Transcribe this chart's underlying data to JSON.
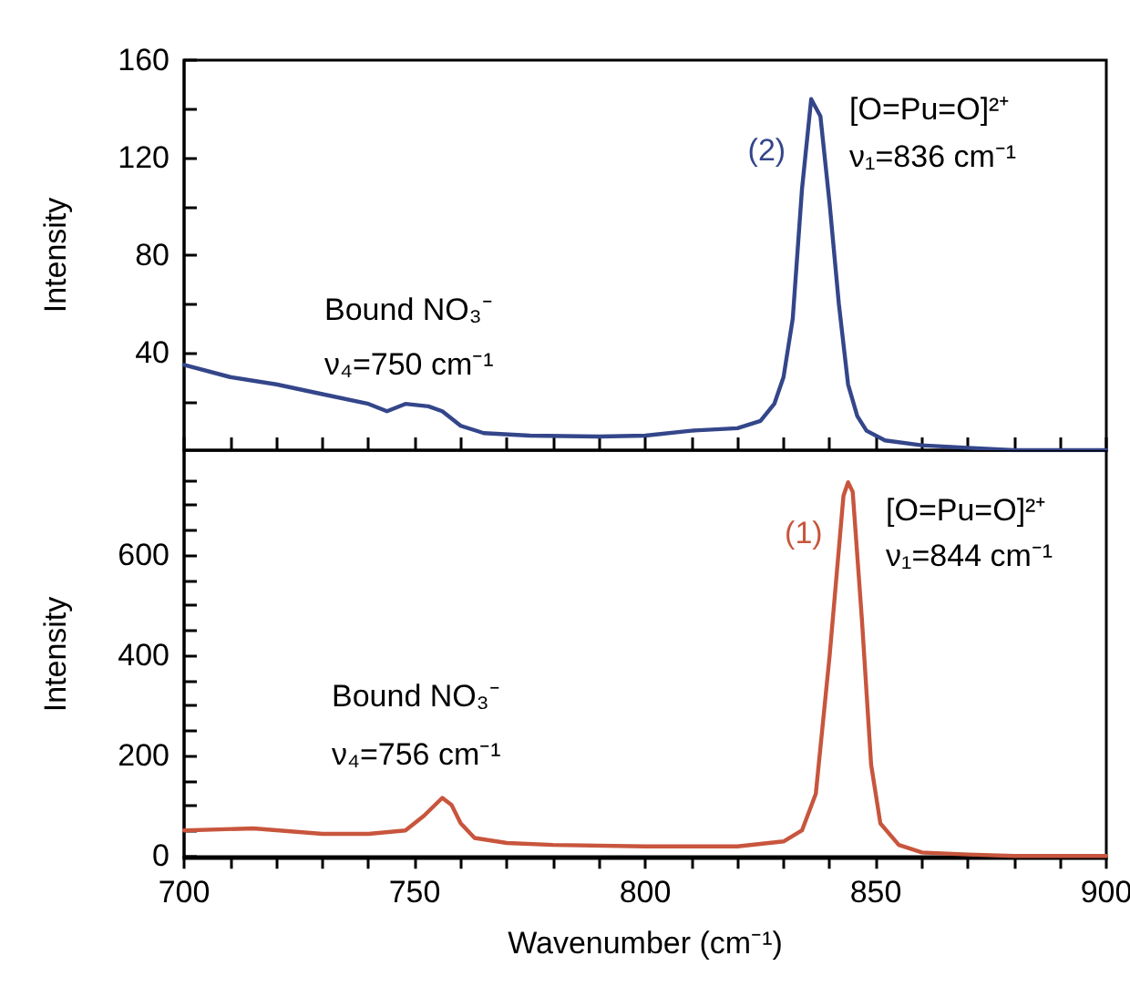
{
  "chart_data": [
    {
      "type": "line",
      "ylabel": "Intensity",
      "tick_labels": "y",
      "grid": false,
      "legend": false,
      "marker": "none",
      "line_style": "solid",
      "xlim": [
        700,
        900
      ],
      "xticks": [
        700,
        710,
        720,
        730,
        740,
        750,
        760,
        770,
        780,
        790,
        800,
        810,
        820,
        830,
        840,
        850,
        860,
        870,
        880,
        890,
        900
      ],
      "ylim": [
        0,
        160
      ],
      "yticks": [
        {
          "value": 20,
          "label": null
        },
        40,
        {
          "value": 60,
          "label": null
        },
        80,
        {
          "value": 100,
          "label": null
        },
        120,
        {
          "value": 140,
          "label": null
        },
        160
      ],
      "series": [
        {
          "name": "(2)",
          "color": "#34468a",
          "x": [
            700,
            710,
            720,
            730,
            740,
            744,
            748,
            753,
            756,
            760,
            765,
            775,
            790,
            800,
            810,
            820,
            825,
            828,
            830,
            832,
            834,
            836,
            838,
            840,
            842,
            844,
            846,
            848,
            852,
            860,
            870,
            880,
            890,
            900
          ],
          "values": [
            35,
            30,
            27,
            23,
            19,
            16,
            19,
            18,
            16,
            10,
            7,
            6,
            5.6,
            6,
            8,
            9,
            12,
            19,
            30,
            54,
            107,
            144,
            137,
            101,
            60,
            27,
            14,
            8,
            4,
            2,
            1,
            0,
            0,
            0
          ]
        }
      ],
      "annotations": [
        "Bound NO₃⁻",
        "ν₄=750 cm⁻¹",
        "[O=Pu=O]²⁺",
        "ν₁=836 cm⁻¹"
      ]
    },
    {
      "type": "line",
      "xlabel": "Wavenumber (cm⁻¹)",
      "ylabel": "Intensity",
      "grid": false,
      "legend": false,
      "marker": "none",
      "line_style": "solid",
      "xlim": [
        700,
        900
      ],
      "xticks": [
        700,
        {
          "value": 710,
          "label": null
        },
        {
          "value": 720,
          "label": null
        },
        {
          "value": 730,
          "label": null
        },
        {
          "value": 740,
          "label": null
        },
        750,
        {
          "value": 760,
          "label": null
        },
        {
          "value": 770,
          "label": null
        },
        {
          "value": 780,
          "label": null
        },
        {
          "value": 790,
          "label": null
        },
        800,
        {
          "value": 810,
          "label": null
        },
        {
          "value": 820,
          "label": null
        },
        {
          "value": 830,
          "label": null
        },
        {
          "value": 840,
          "label": null
        },
        850,
        {
          "value": 860,
          "label": null
        },
        {
          "value": 870,
          "label": null
        },
        {
          "value": 880,
          "label": null
        },
        {
          "value": 890,
          "label": null
        },
        900
      ],
      "ylim": [
        -5,
        810
      ],
      "yticks": [
        0,
        {
          "value": 50,
          "label": null
        },
        {
          "value": 100,
          "label": null
        },
        {
          "value": 150,
          "label": null
        },
        200,
        {
          "value": 250,
          "label": null
        },
        {
          "value": 300,
          "label": null
        },
        {
          "value": 350,
          "label": null
        },
        400,
        {
          "value": 450,
          "label": null
        },
        {
          "value": 500,
          "label": null
        },
        {
          "value": 550,
          "label": null
        },
        600,
        {
          "value": 650,
          "label": null
        },
        {
          "value": 700,
          "label": null
        },
        {
          "value": 750,
          "label": null
        }
      ],
      "series": [
        {
          "name": "(1)",
          "color": "#c8553d",
          "x": [
            700,
            715,
            730,
            740,
            748,
            752,
            756,
            758,
            760,
            763,
            770,
            780,
            800,
            820,
            830,
            834,
            837,
            840,
            843,
            844,
            845,
            847,
            849,
            851,
            855,
            860,
            870,
            880,
            900
          ],
          "values": [
            51,
            55,
            44,
            44,
            51,
            80,
            116,
            102,
            65,
            36,
            26,
            22,
            19,
            19,
            29,
            51,
            124,
            400,
            719,
            746,
            727,
            472,
            182,
            65,
            22,
            7,
            3,
            0,
            0
          ]
        }
      ],
      "annotations": [
        "Bound NO₃⁻",
        "ν₄=756 cm⁻¹",
        "[O=Pu=O]²⁺",
        "ν₁=844 cm⁻¹"
      ]
    }
  ]
}
